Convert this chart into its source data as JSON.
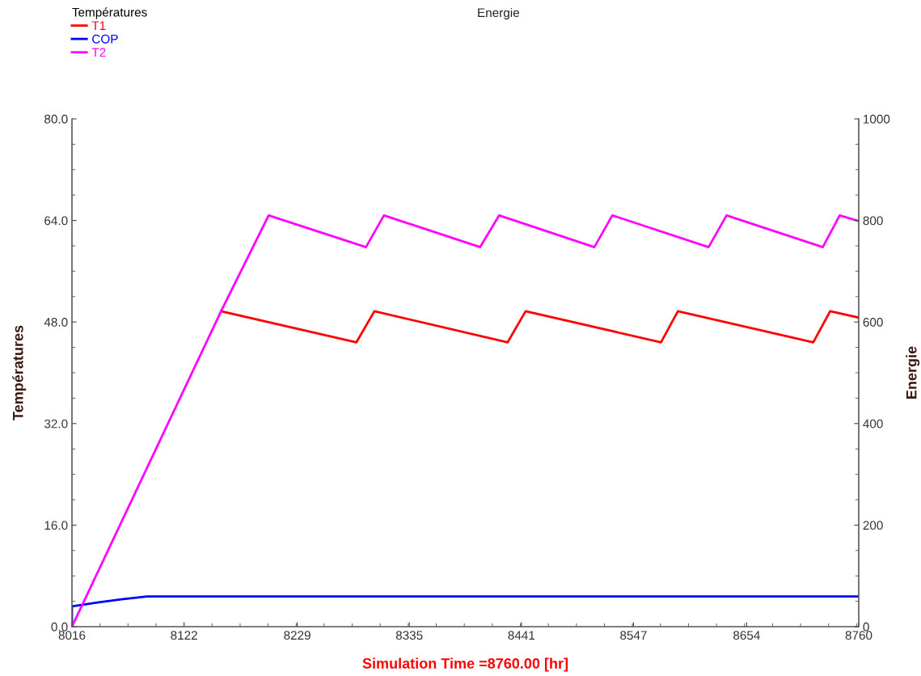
{
  "chart_data": {
    "type": "line",
    "xlabel": "Simulation Time =8760.00 [hr]",
    "ylabel": "Températures",
    "y2label": "Energie",
    "legend_title": "Températures",
    "annotations": [
      "Energie"
    ],
    "legend": "top left",
    "grid": false,
    "marker": "none",
    "line_style": "solid",
    "xlim": [
      8016,
      8760
    ],
    "xticks": [
      8016,
      8122,
      8229,
      8335,
      8441,
      8547,
      8654,
      8760
    ],
    "ylim": [
      0,
      80
    ],
    "yticks": [
      {
        "value": 0,
        "label": "0.0"
      },
      {
        "value": 16,
        "label": "16.0"
      },
      {
        "value": 32,
        "label": "32.0"
      },
      {
        "value": 48,
        "label": "48.0"
      },
      {
        "value": 64,
        "label": "64.0"
      },
      {
        "value": 80,
        "label": "80.0"
      }
    ],
    "y2lim": [
      0,
      1000
    ],
    "y2ticks": [
      0,
      200,
      400,
      600,
      800,
      1000
    ],
    "series": [
      {
        "name": "T1",
        "color": "#ff0000",
        "x": [
          8157,
          8285,
          8302,
          8428,
          8445,
          8573,
          8589,
          8717,
          8733,
          8760
        ],
        "values": [
          49.7,
          44.8,
          49.7,
          44.8,
          49.7,
          44.8,
          49.7,
          44.8,
          49.7,
          48.7
        ]
      },
      {
        "name": "COP",
        "color": "#0000ff",
        "x": [
          8016,
          8016,
          8040,
          8063,
          8087,
          8760
        ],
        "values": [
          0,
          3.2,
          3.8,
          4.3,
          4.75,
          4.75
        ]
      },
      {
        "name": "T2",
        "color": "#ff00ff",
        "x": [
          8016,
          8157,
          8202,
          8294,
          8311,
          8402,
          8420,
          8510,
          8527,
          8618,
          8635,
          8726,
          8742,
          8760
        ],
        "values": [
          0,
          49.7,
          64.8,
          59.8,
          64.8,
          59.8,
          64.8,
          59.8,
          64.8,
          59.8,
          64.8,
          59.8,
          64.8,
          63.9
        ]
      }
    ]
  }
}
